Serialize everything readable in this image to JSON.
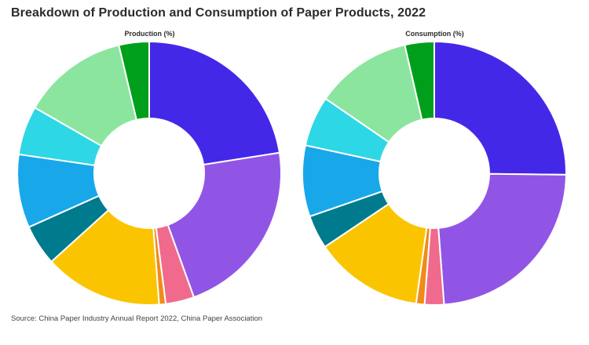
{
  "title": "Breakdown of Production and Consumption of Paper Products, 2022",
  "source": "Source: China Paper Industry Annual Report 2022, China Paper Association",
  "chart_data": [
    {
      "type": "pie",
      "title": "Production (%)",
      "donut": true,
      "slices": [
        {
          "value": 22.5,
          "color": "#4428E8"
        },
        {
          "value": 22.0,
          "color": "#9155E6"
        },
        {
          "value": 3.5,
          "color": "#F06A8D"
        },
        {
          "value": 0.8,
          "color": "#F28B15"
        },
        {
          "value": 14.5,
          "color": "#FBC400"
        },
        {
          "value": 5.0,
          "color": "#007B8E"
        },
        {
          "value": 9.0,
          "color": "#18A8EA"
        },
        {
          "value": 6.0,
          "color": "#2ED7E6"
        },
        {
          "value": 13.0,
          "color": "#8BE59E"
        },
        {
          "value": 3.7,
          "color": "#009F1B"
        }
      ]
    },
    {
      "type": "pie",
      "title": "Consumption (%)",
      "donut": true,
      "slices": [
        {
          "value": 24.5,
          "color": "#4428E8"
        },
        {
          "value": 23.0,
          "color": "#9155E6"
        },
        {
          "value": 2.3,
          "color": "#F06A8D"
        },
        {
          "value": 1.0,
          "color": "#F28B15"
        },
        {
          "value": 13.0,
          "color": "#FBC400"
        },
        {
          "value": 4.0,
          "color": "#007B8E"
        },
        {
          "value": 8.5,
          "color": "#18A8EA"
        },
        {
          "value": 6.0,
          "color": "#2ED7E6"
        },
        {
          "value": 11.5,
          "color": "#8BE59E"
        },
        {
          "value": 3.5,
          "color": "#009F1B"
        }
      ]
    }
  ]
}
